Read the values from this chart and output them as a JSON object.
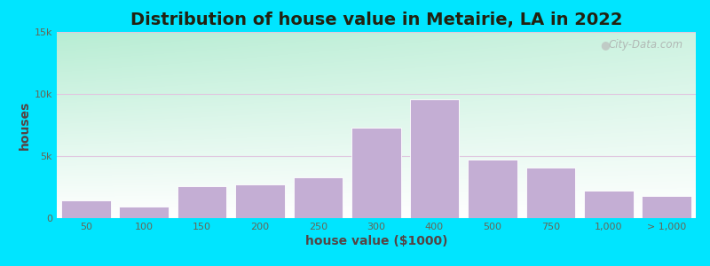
{
  "title": "Distribution of house value in Metairie, LA in 2022",
  "xlabel": "house value ($1000)",
  "ylabel": "houses",
  "bar_labels": [
    "50",
    "100",
    "150",
    "200",
    "250",
    "300",
    "400",
    "500",
    "750",
    "1,000",
    "> 1,000"
  ],
  "bar_values": [
    1400,
    900,
    2600,
    2700,
    3300,
    7300,
    9600,
    4700,
    4100,
    2200,
    1800
  ],
  "bar_color": "#c4aed4",
  "bar_edge_color": "#ffffff",
  "yticks": [
    0,
    5000,
    10000,
    15000
  ],
  "ytick_labels": [
    "0",
    "5k",
    "10k",
    "15k"
  ],
  "ylim": [
    0,
    15000
  ],
  "bg_grad_topleft": "#b8ecd4",
  "bg_grad_right": "#f0f5ec",
  "bg_grad_bottom": "#ffffff",
  "outer_bg": "#00e5ff",
  "title_fontsize": 14,
  "axis_label_fontsize": 10,
  "tick_fontsize": 8,
  "watermark_text": "City-Data.com",
  "grid_color": "#e0c8e0",
  "grid_linewidth": 0.8
}
